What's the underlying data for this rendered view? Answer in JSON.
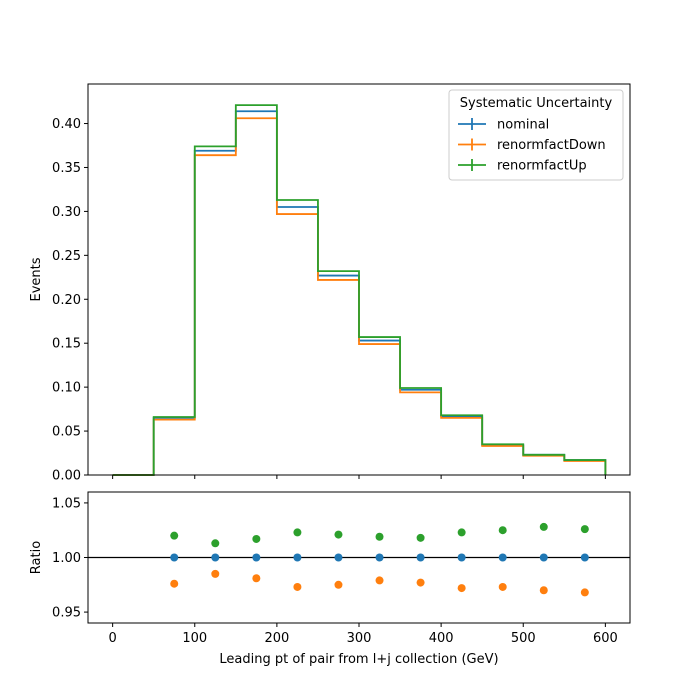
{
  "chart_data": [
    {
      "type": "step",
      "panel": "main",
      "ylabel": "Events",
      "xlim": [
        -30,
        630
      ],
      "ylim": [
        0,
        0.445
      ],
      "yticks": [
        0.0,
        0.05,
        0.1,
        0.15,
        0.2,
        0.25,
        0.3,
        0.35,
        0.4
      ],
      "ytick_labels": [
        "0.00",
        "0.05",
        "0.10",
        "0.15",
        "0.20",
        "0.25",
        "0.30",
        "0.35",
        "0.40"
      ],
      "bin_edges": [
        0,
        50,
        100,
        150,
        200,
        250,
        300,
        350,
        400,
        450,
        500,
        550,
        600
      ],
      "series": [
        {
          "name": "nominal",
          "color": "#1f77b4",
          "values": [
            0.0,
            0.065,
            0.369,
            0.414,
            0.305,
            0.227,
            0.153,
            0.097,
            0.067,
            0.034,
            0.023,
            0.017
          ]
        },
        {
          "name": "renormfactDown",
          "color": "#ff7f0e",
          "values": [
            0.0,
            0.063,
            0.364,
            0.406,
            0.297,
            0.222,
            0.149,
            0.094,
            0.065,
            0.033,
            0.022,
            0.016
          ]
        },
        {
          "name": "renormfactUp",
          "color": "#2ca02c",
          "values": [
            0.0,
            0.066,
            0.374,
            0.421,
            0.313,
            0.232,
            0.157,
            0.099,
            0.068,
            0.035,
            0.023,
            0.017
          ]
        }
      ],
      "legend": {
        "title": "Systematic Uncertainty",
        "entries": [
          "nominal",
          "renormfactDown",
          "renormfactUp"
        ],
        "placement": "top-right"
      }
    },
    {
      "type": "scatter",
      "panel": "ratio",
      "xlabel": "Leading pt of pair from l+j collection (GeV)",
      "ylabel": "Ratio",
      "xlim": [
        -30,
        630
      ],
      "ylim": [
        0.94,
        1.06
      ],
      "xticks": [
        0,
        100,
        200,
        300,
        400,
        500,
        600
      ],
      "xtick_labels": [
        "0",
        "100",
        "200",
        "300",
        "400",
        "500",
        "600"
      ],
      "yticks": [
        0.95,
        1.0,
        1.05
      ],
      "ytick_labels": [
        "0.95",
        "1.00",
        "1.05"
      ],
      "reference_line": 1.0,
      "x": [
        75,
        125,
        175,
        225,
        275,
        325,
        375,
        425,
        475,
        525,
        575
      ],
      "series": [
        {
          "name": "nominal",
          "color": "#1f77b4",
          "values": [
            1.0,
            1.0,
            1.0,
            1.0,
            1.0,
            1.0,
            1.0,
            1.0,
            1.0,
            1.0,
            1.0
          ]
        },
        {
          "name": "renormfactDown",
          "color": "#ff7f0e",
          "values": [
            0.976,
            0.985,
            0.981,
            0.973,
            0.975,
            0.979,
            0.977,
            0.972,
            0.973,
            0.97,
            0.968
          ]
        },
        {
          "name": "renormfactUp",
          "color": "#2ca02c",
          "values": [
            1.02,
            1.013,
            1.017,
            1.023,
            1.021,
            1.019,
            1.018,
            1.023,
            1.025,
            1.028,
            1.026
          ]
        }
      ]
    }
  ]
}
